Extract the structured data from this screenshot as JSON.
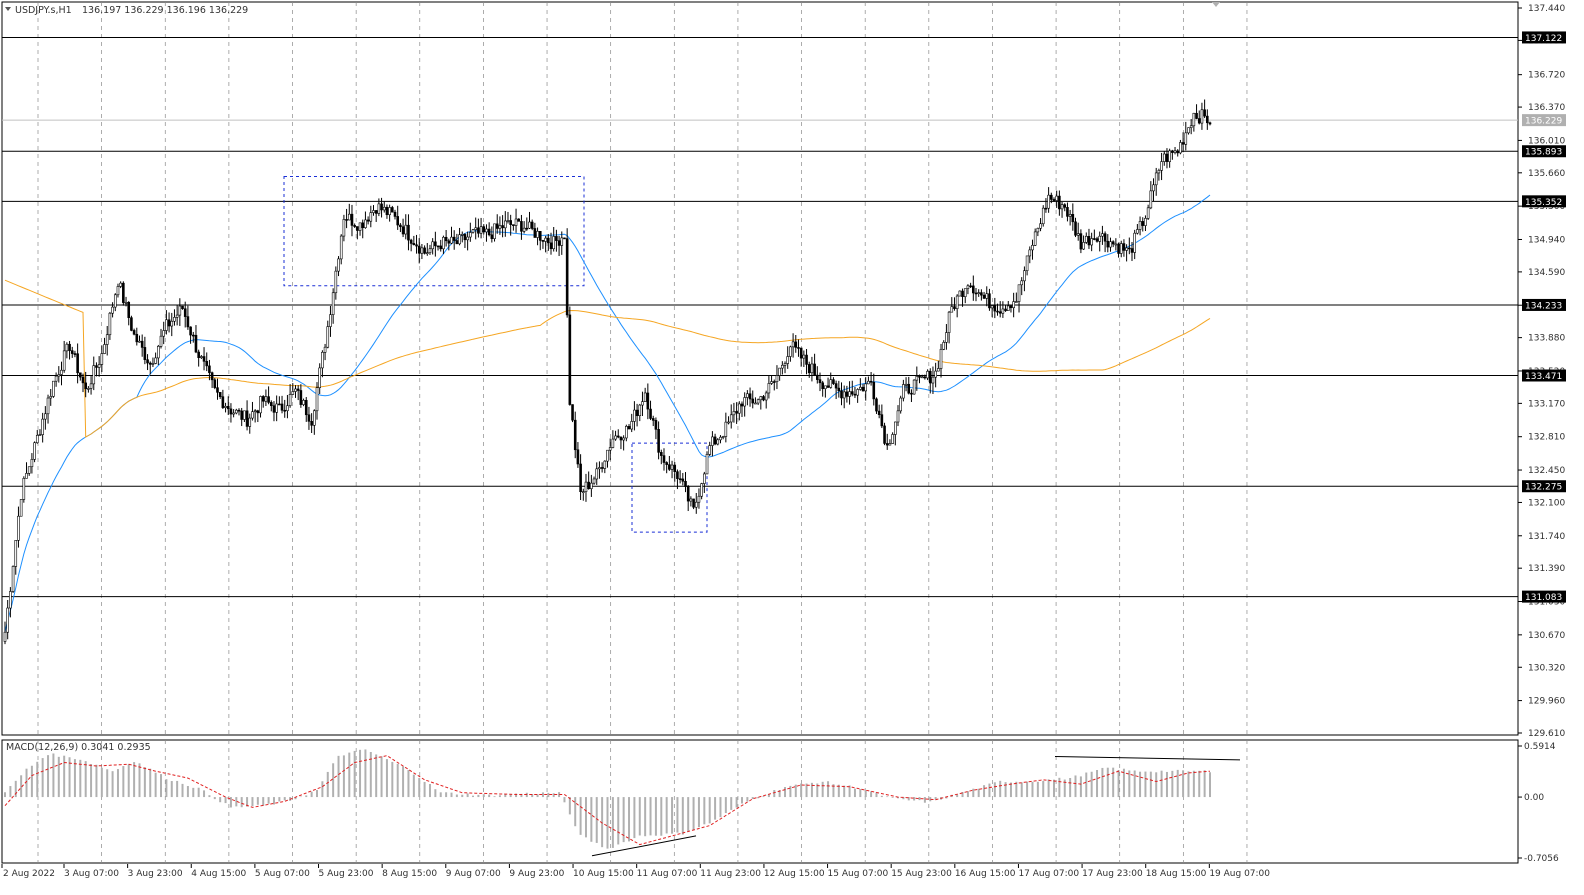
{
  "symbol_info": {
    "symbol": "USDJPY.s,H1",
    "ohlc": "136.197 136.229 136.196 136.229"
  },
  "macd_info": {
    "label": "MACD(12,26,9) 0.3041 0.2935"
  },
  "colors": {
    "background": "#ffffff",
    "grid": "#8a8a8a",
    "candle": "#000000",
    "ma_fast": "#1e90ff",
    "ma_slow": "#f5a623",
    "macd_hist": "#b0b0b0",
    "macd_signal": "#e02020",
    "zone_box": "#1a2fd6",
    "price_tag_bg": "#000000",
    "current_tag_bg": "#b0b0b0"
  },
  "chart_data": {
    "type": "candlestick",
    "timeframe": "H1",
    "ylim": [
      129.61,
      137.5
    ],
    "price_ticks": [
      "137.440",
      "137.090",
      "136.720",
      "136.370",
      "136.010",
      "135.660",
      "135.300",
      "134.940",
      "134.590",
      "134.230",
      "133.880",
      "133.520",
      "133.170",
      "132.810",
      "132.450",
      "132.100",
      "131.740",
      "131.390",
      "131.030",
      "130.670",
      "130.320",
      "129.960",
      "129.610"
    ],
    "time_labels": [
      "2 Aug 2022",
      "3 Aug 07:00",
      "3 Aug 23:00",
      "4 Aug 15:00",
      "5 Aug 07:00",
      "5 Aug 23:00",
      "8 Aug 15:00",
      "9 Aug 07:00",
      "9 Aug 23:00",
      "10 Aug 15:00",
      "11 Aug 07:00",
      "11 Aug 23:00",
      "12 Aug 15:00",
      "15 Aug 07:00",
      "15 Aug 23:00",
      "16 Aug 15:00",
      "17 Aug 07:00",
      "17 Aug 23:00",
      "18 Aug 15:00",
      "19 Aug 07:00"
    ],
    "levels": [
      "137.122",
      "135.893",
      "135.352",
      "134.233",
      "133.471",
      "132.275",
      "131.083"
    ],
    "current_price": "136.229",
    "keypoints": [
      [
        0,
        130.7
      ],
      [
        6,
        132.2
      ],
      [
        12,
        132.8
      ],
      [
        18,
        133.4
      ],
      [
        24,
        133.8
      ],
      [
        30,
        133.3
      ],
      [
        36,
        133.7
      ],
      [
        42,
        134.5
      ],
      [
        48,
        133.9
      ],
      [
        54,
        133.6
      ],
      [
        60,
        134.0
      ],
      [
        66,
        134.2
      ],
      [
        72,
        133.7
      ],
      [
        78,
        133.3
      ],
      [
        84,
        133.1
      ],
      [
        90,
        133.0
      ],
      [
        96,
        133.2
      ],
      [
        102,
        133.1
      ],
      [
        108,
        133.3
      ],
      [
        114,
        133.0
      ],
      [
        120,
        134.0
      ],
      [
        126,
        135.2
      ],
      [
        132,
        135.1
      ],
      [
        138,
        135.3
      ],
      [
        144,
        135.2
      ],
      [
        150,
        135.0
      ],
      [
        156,
        134.8
      ],
      [
        162,
        134.9
      ],
      [
        168,
        134.9
      ],
      [
        174,
        135.0
      ],
      [
        180,
        135.0
      ],
      [
        186,
        135.1
      ],
      [
        192,
        135.1
      ],
      [
        198,
        135.0
      ],
      [
        204,
        134.9
      ],
      [
        208,
        135.0
      ],
      [
        210,
        133.2
      ],
      [
        214,
        132.2
      ],
      [
        220,
        132.4
      ],
      [
        226,
        132.8
      ],
      [
        232,
        132.9
      ],
      [
        238,
        133.3
      ],
      [
        244,
        132.6
      ],
      [
        250,
        132.4
      ],
      [
        256,
        132.0
      ],
      [
        262,
        132.7
      ],
      [
        268,
        132.9
      ],
      [
        274,
        133.2
      ],
      [
        280,
        133.2
      ],
      [
        286,
        133.4
      ],
      [
        292,
        133.8
      ],
      [
        298,
        133.6
      ],
      [
        304,
        133.4
      ],
      [
        310,
        133.3
      ],
      [
        316,
        133.3
      ],
      [
        322,
        133.4
      ],
      [
        328,
        132.7
      ],
      [
        334,
        133.3
      ],
      [
        340,
        133.4
      ],
      [
        346,
        133.5
      ],
      [
        352,
        134.2
      ],
      [
        358,
        134.5
      ],
      [
        364,
        134.3
      ],
      [
        370,
        134.2
      ],
      [
        376,
        134.3
      ],
      [
        382,
        134.9
      ],
      [
        388,
        135.4
      ],
      [
        394,
        135.3
      ],
      [
        400,
        134.9
      ],
      [
        406,
        135.0
      ],
      [
        412,
        134.9
      ],
      [
        418,
        134.8
      ],
      [
        424,
        135.2
      ],
      [
        430,
        135.8
      ],
      [
        436,
        135.9
      ],
      [
        442,
        136.3
      ],
      [
        448,
        136.229
      ]
    ],
    "bar_count": 449,
    "macd": {
      "ylim": [
        -0.7056,
        0.5914
      ],
      "ticks": [
        "0.5914",
        "0.00",
        "-0.7056"
      ],
      "histogram": [
        [
          0,
          0.05
        ],
        [
          8,
          0.32
        ],
        [
          16,
          0.5
        ],
        [
          28,
          0.44
        ],
        [
          40,
          0.3
        ],
        [
          48,
          0.42
        ],
        [
          60,
          0.22
        ],
        [
          72,
          0.1
        ],
        [
          84,
          -0.12
        ],
        [
          96,
          -0.1
        ],
        [
          106,
          -0.04
        ],
        [
          116,
          0.08
        ],
        [
          124,
          0.48
        ],
        [
          134,
          0.55
        ],
        [
          150,
          0.32
        ],
        [
          162,
          0.05
        ],
        [
          180,
          0.02
        ],
        [
          192,
          0.04
        ],
        [
          206,
          0.05
        ],
        [
          214,
          -0.45
        ],
        [
          224,
          -0.6
        ],
        [
          236,
          -0.45
        ],
        [
          252,
          -0.42
        ],
        [
          262,
          -0.3
        ],
        [
          276,
          -0.05
        ],
        [
          290,
          0.12
        ],
        [
          304,
          0.18
        ],
        [
          318,
          0.1
        ],
        [
          330,
          -0.02
        ],
        [
          344,
          -0.06
        ],
        [
          358,
          0.07
        ],
        [
          370,
          0.18
        ],
        [
          380,
          0.18
        ],
        [
          396,
          0.22
        ],
        [
          410,
          0.34
        ],
        [
          420,
          0.3
        ],
        [
          440,
          0.3
        ],
        [
          448,
          0.3
        ]
      ],
      "signal": [
        [
          0,
          -0.1
        ],
        [
          10,
          0.25
        ],
        [
          22,
          0.4
        ],
        [
          34,
          0.36
        ],
        [
          46,
          0.38
        ],
        [
          56,
          0.3
        ],
        [
          68,
          0.22
        ],
        [
          82,
          0.0
        ],
        [
          92,
          -0.12
        ],
        [
          104,
          -0.05
        ],
        [
          118,
          0.12
        ],
        [
          130,
          0.4
        ],
        [
          142,
          0.48
        ],
        [
          156,
          0.2
        ],
        [
          170,
          0.05
        ],
        [
          190,
          0.03
        ],
        [
          208,
          0.03
        ],
        [
          222,
          -0.3
        ],
        [
          236,
          -0.55
        ],
        [
          248,
          -0.45
        ],
        [
          262,
          -0.33
        ],
        [
          278,
          -0.02
        ],
        [
          296,
          0.14
        ],
        [
          314,
          0.12
        ],
        [
          332,
          0.0
        ],
        [
          346,
          -0.03
        ],
        [
          360,
          0.08
        ],
        [
          374,
          0.15
        ],
        [
          386,
          0.2
        ],
        [
          400,
          0.15
        ],
        [
          414,
          0.3
        ],
        [
          428,
          0.18
        ],
        [
          440,
          0.28
        ],
        [
          448,
          0.3
        ]
      ]
    }
  }
}
